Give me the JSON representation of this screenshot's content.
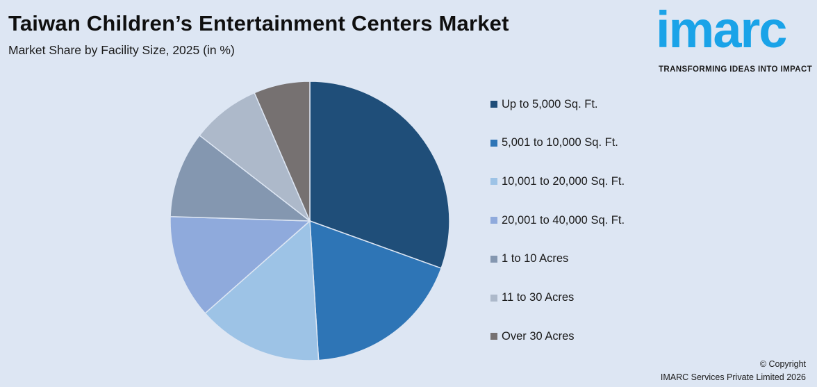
{
  "header": {
    "title": "Taiwan Children’s Entertainment Centers Market",
    "subtitle": "Market Share by Facility Size, 2025 (in %)"
  },
  "logo": {
    "word": "imarc",
    "tagline": "TRANSFORMING IDEAS INTO IMPACT",
    "color": "#1aa3e8"
  },
  "chart_data": {
    "type": "pie",
    "title": "Taiwan Children’s Entertainment Centers Market",
    "subtitle": "Market Share by Facility Size, 2025 (in %)",
    "legend_position": "right",
    "categories": [
      "Up to 5,000 Sq. Ft.",
      "5,001 to 10,000 Sq. Ft.",
      "10,001 to 20,000 Sq. Ft.",
      "20,001 to 40,000 Sq. Ft.",
      "1 to 10 Acres",
      "11 to 30 Acres",
      "Over 30 Acres"
    ],
    "values": [
      30.5,
      18.5,
      14.5,
      12.0,
      10.0,
      8.0,
      6.5
    ],
    "colors": [
      "#1f4e79",
      "#2e75b6",
      "#9dc3e6",
      "#8faadc",
      "#8497b0",
      "#adb9ca",
      "#767171"
    ]
  },
  "footer": {
    "copyright_line1": "© Copyright",
    "copyright_line2": "IMARC Services Private Limited 2026"
  }
}
